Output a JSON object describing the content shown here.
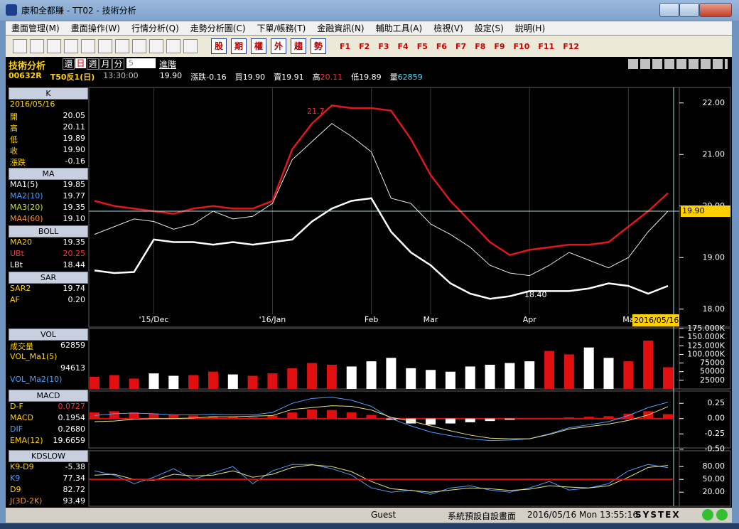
{
  "window": {
    "title": "康和全都賺 - TT02 - 技術分析"
  },
  "menu": [
    "畫面管理(M)",
    "畫面操作(W)",
    "行情分析(Q)",
    "走勢分析圖(C)",
    "下單/帳務(T)",
    "金融資訊(N)",
    "輔助工具(A)",
    "檢視(V)",
    "設定(S)",
    "說明(H)"
  ],
  "toolbar": {
    "buttons": [
      "股",
      "期",
      "權",
      "外",
      "趨",
      "勢"
    ],
    "function_keys": [
      "F1",
      "F2",
      "F3",
      "F4",
      "F5",
      "F6",
      "F7",
      "F8",
      "F9",
      "F10",
      "F11",
      "F12"
    ]
  },
  "panel": {
    "title": "技術分析",
    "buttons": [
      "還",
      "日",
      "週",
      "月",
      "分"
    ],
    "period": "5",
    "mode": "進階"
  },
  "quote": {
    "symbol": "00632R",
    "name": "T50反1(日)",
    "time": "13:30:00",
    "price": "19.90",
    "fields": [
      {
        "label": "漲跌",
        "value": "-0.16",
        "color": "#ffffff"
      },
      {
        "label": "買",
        "value": "19.90",
        "color": "#ffffff"
      },
      {
        "label": "賣",
        "value": "19.91",
        "color": "#ffffff"
      },
      {
        "label": "高",
        "value": "20.11",
        "color": "#ff3030"
      },
      {
        "label": "低",
        "value": "19.89",
        "color": "#ffffff"
      },
      {
        "label": "量",
        "value": "62859",
        "color": "#40e0ff"
      }
    ]
  },
  "side": [
    {
      "title": "K",
      "label_color": "#ffd000",
      "rows": [
        {
          "label": "2016/05/16"
        },
        {
          "label": "開",
          "value": "20.05"
        },
        {
          "label": "高",
          "value": "20.11"
        },
        {
          "label": "低",
          "value": "19.89"
        },
        {
          "label": "收",
          "value": "19.90"
        },
        {
          "label": "漲跌",
          "value": "-0.16"
        }
      ]
    },
    {
      "title": "MA",
      "label_color": "#ffd000",
      "rows": [
        {
          "label": "MA1(5)",
          "value": "19.85",
          "color": "#ffffff"
        },
        {
          "label": "MA2(10)",
          "value": "19.77",
          "color": "#4aa0ff"
        },
        {
          "label": "MA3(20)",
          "value": "19.35",
          "color": "#c8e040"
        },
        {
          "label": "MA4(60)",
          "value": "19.10",
          "color": "#ff9020"
        }
      ]
    },
    {
      "title": "BOLL",
      "label_color": "#ffd000",
      "rows": [
        {
          "label": "MA20",
          "value": "19.35"
        },
        {
          "label": "UBt",
          "value": "20.25",
          "color": "#ff3030",
          "value_color": "#ff3030"
        },
        {
          "label": "LBt",
          "value": "18.44",
          "color": "#ffffff"
        }
      ]
    },
    {
      "title": "SAR",
      "label_color": "#ffd000",
      "rows": [
        {
          "label": "SAR2",
          "value": "19.74"
        },
        {
          "label": "AF",
          "value": "0.20"
        }
      ]
    },
    {
      "title": "VOL",
      "label_color": "#ffd000",
      "rows": [
        {
          "label": "成交量",
          "value": "62859"
        },
        {
          "label": "VOL_Ma1(5)"
        },
        {
          "value": "94613"
        },
        {
          "label": "VOL_Ma2(10)",
          "color": "#4aa0ff"
        }
      ]
    },
    {
      "title": "MACD",
      "label_color": "#ffd000",
      "rows": [
        {
          "label": "D-F",
          "value": "0.0727",
          "value_color": "#ff3030"
        },
        {
          "label": "MACD",
          "value": "0.1954"
        },
        {
          "label": "DIF",
          "value": "0.2680",
          "color": "#4aa0ff"
        },
        {
          "label": "EMA(12)",
          "value": "19.6659"
        }
      ]
    },
    {
      "title": "KDSLOW",
      "label_color": "#ffd000",
      "rows": [
        {
          "label": "K9-D9",
          "value": "-5.38"
        },
        {
          "label": "K9",
          "value": "77.34",
          "color": "#4aa0ff"
        },
        {
          "label": "D9",
          "value": "82.72"
        },
        {
          "label": "J(3D-2K)",
          "value": "93.49",
          "color": "#ff9020"
        }
      ]
    }
  ],
  "chart_data": [
    {
      "type": "line",
      "grid": true,
      "categories": [
        null,
        null,
        null,
        "'15/Dec",
        null,
        null,
        null,
        null,
        null,
        "'16/Jan",
        null,
        null,
        null,
        null,
        "Feb",
        null,
        null,
        "Mar",
        null,
        null,
        null,
        null,
        "Apr",
        null,
        null,
        null,
        null,
        "Ma",
        null,
        null
      ],
      "series": [
        {
          "color": "#e8e8e8",
          "width": 1,
          "values": [
            19.45,
            19.6,
            19.75,
            19.7,
            19.55,
            19.65,
            19.9,
            19.75,
            19.8,
            20.05,
            20.9,
            21.25,
            21.6,
            21.35,
            21.05,
            20.15,
            20.05,
            19.65,
            19.45,
            19.2,
            18.85,
            18.7,
            18.65,
            18.85,
            19.1,
            18.95,
            18.8,
            19.0,
            19.5,
            19.9
          ]
        },
        {
          "color": "#e01818",
          "width": 2.5,
          "values": [
            20.1,
            20.0,
            19.95,
            19.9,
            19.85,
            19.95,
            20.0,
            19.95,
            19.95,
            20.1,
            21.1,
            21.6,
            21.95,
            21.9,
            21.9,
            21.85,
            21.3,
            20.6,
            20.1,
            19.7,
            19.3,
            19.05,
            19.15,
            19.2,
            19.25,
            19.25,
            19.3,
            19.6,
            19.9,
            20.25
          ]
        },
        {
          "color": "#ffffff",
          "width": 2.5,
          "values": [
            18.75,
            18.7,
            18.72,
            19.35,
            19.3,
            19.3,
            19.25,
            19.3,
            19.25,
            19.3,
            19.35,
            19.7,
            19.95,
            20.1,
            20.15,
            19.5,
            19.1,
            18.85,
            18.5,
            18.3,
            18.2,
            18.25,
            18.35,
            18.35,
            18.35,
            18.4,
            18.5,
            18.45,
            18.3,
            18.45
          ]
        }
      ],
      "ylim": [
        17.9,
        22.3
      ],
      "yticks": [
        {
          "value": 22,
          "label": "22.00"
        },
        {
          "value": 21,
          "label": "21.00"
        },
        {
          "value": 20,
          "label": "20.00"
        },
        {
          "value": 19,
          "label": "19.00"
        },
        {
          "value": 18,
          "label": "18.00"
        }
      ],
      "annotations": [
        "21.7",
        "18.40"
      ],
      "current_price": "19.90",
      "current_date": "2016/05/16"
    },
    {
      "type": "bar",
      "up_color": "#e01010",
      "down_color": "#ffffff",
      "values": [
        35000,
        40000,
        30000,
        45000,
        38000,
        40000,
        50000,
        42000,
        38000,
        45000,
        60000,
        75000,
        70000,
        65000,
        80000,
        90000,
        60000,
        55000,
        50000,
        65000,
        70000,
        75000,
        80000,
        110000,
        100000,
        120000,
        90000,
        80000,
        140000,
        62859
      ],
      "ylim": [
        0,
        175000
      ],
      "yticks": [
        {
          "value": 175000,
          "label": "175.000K"
        },
        {
          "value": 150000,
          "label": "150.000K"
        },
        {
          "value": 125000,
          "label": "125.000K"
        },
        {
          "value": 100000,
          "label": "100.000K"
        },
        75000,
        50000,
        25000
      ]
    },
    {
      "type": "combo",
      "series": [
        {
          "kind": "bar",
          "color": "#e01010",
          "negative_color": "#ffffff",
          "values": [
            0.1,
            0.12,
            0.1,
            0.08,
            0.06,
            0.05,
            0.04,
            0.03,
            0.02,
            0.05,
            0.1,
            0.15,
            0.14,
            0.1,
            0.06,
            -0.02,
            -0.08,
            -0.1,
            -0.08,
            -0.06,
            -0.04,
            -0.02,
            0.0,
            0.01,
            0.02,
            0.03,
            0.04,
            0.08,
            0.12,
            0.0727
          ]
        },
        {
          "kind": "line",
          "color": "#4aa0ff",
          "values": [
            0.05,
            0.08,
            0.09,
            0.08,
            0.06,
            0.06,
            0.07,
            0.06,
            0.06,
            0.1,
            0.25,
            0.33,
            0.35,
            0.3,
            0.2,
            0.0,
            -0.12,
            -0.22,
            -0.28,
            -0.33,
            -0.36,
            -0.35,
            -0.33,
            -0.25,
            -0.15,
            -0.1,
            -0.05,
            0.05,
            0.18,
            0.268
          ]
        },
        {
          "kind": "line",
          "color": "#e8e080",
          "values": [
            -0.05,
            -0.04,
            -0.01,
            0.0,
            0.0,
            0.01,
            0.03,
            0.03,
            0.04,
            0.05,
            0.15,
            0.18,
            0.21,
            0.2,
            0.14,
            0.02,
            -0.04,
            -0.12,
            -0.2,
            -0.27,
            -0.32,
            -0.33,
            -0.33,
            -0.26,
            -0.17,
            -0.13,
            -0.09,
            -0.03,
            0.06,
            0.1954
          ]
        }
      ],
      "ylim": [
        -0.48,
        0.45
      ],
      "yticks": [
        {
          "value": 0.25,
          "label": "0.25"
        },
        {
          "value": 0,
          "label": "0.00"
        },
        {
          "value": -0.25,
          "label": "-0.25"
        },
        {
          "value": -0.5,
          "label": "-0.50"
        }
      ]
    },
    {
      "type": "line",
      "series": [
        {
          "color": "#4aa0ff",
          "width": 1,
          "values": [
            70,
            60,
            40,
            55,
            75,
            50,
            65,
            80,
            40,
            70,
            85,
            85,
            75,
            60,
            30,
            20,
            25,
            15,
            30,
            35,
            25,
            20,
            30,
            45,
            25,
            30,
            40,
            70,
            85,
            77.34
          ]
        },
        {
          "color": "#e8e080",
          "width": 1,
          "values": [
            60,
            62,
            50,
            48,
            62,
            58,
            60,
            70,
            55,
            62,
            78,
            84,
            80,
            68,
            45,
            28,
            24,
            20,
            25,
            30,
            28,
            24,
            27,
            35,
            32,
            30,
            35,
            55,
            78,
            82.72
          ]
        }
      ],
      "ylim": [
        -13,
        117
      ],
      "yticks": [
        {
          "value": 80,
          "label": "80.00"
        },
        {
          "value": 50,
          "label": "50.00"
        },
        {
          "value": 20,
          "label": "20.00"
        }
      ]
    }
  ],
  "status": {
    "user": "Guest",
    "layout": "系統預設自設畫面",
    "clock": "2016/05/16 Mon 13:55:16",
    "brand": "SYSTEX"
  }
}
